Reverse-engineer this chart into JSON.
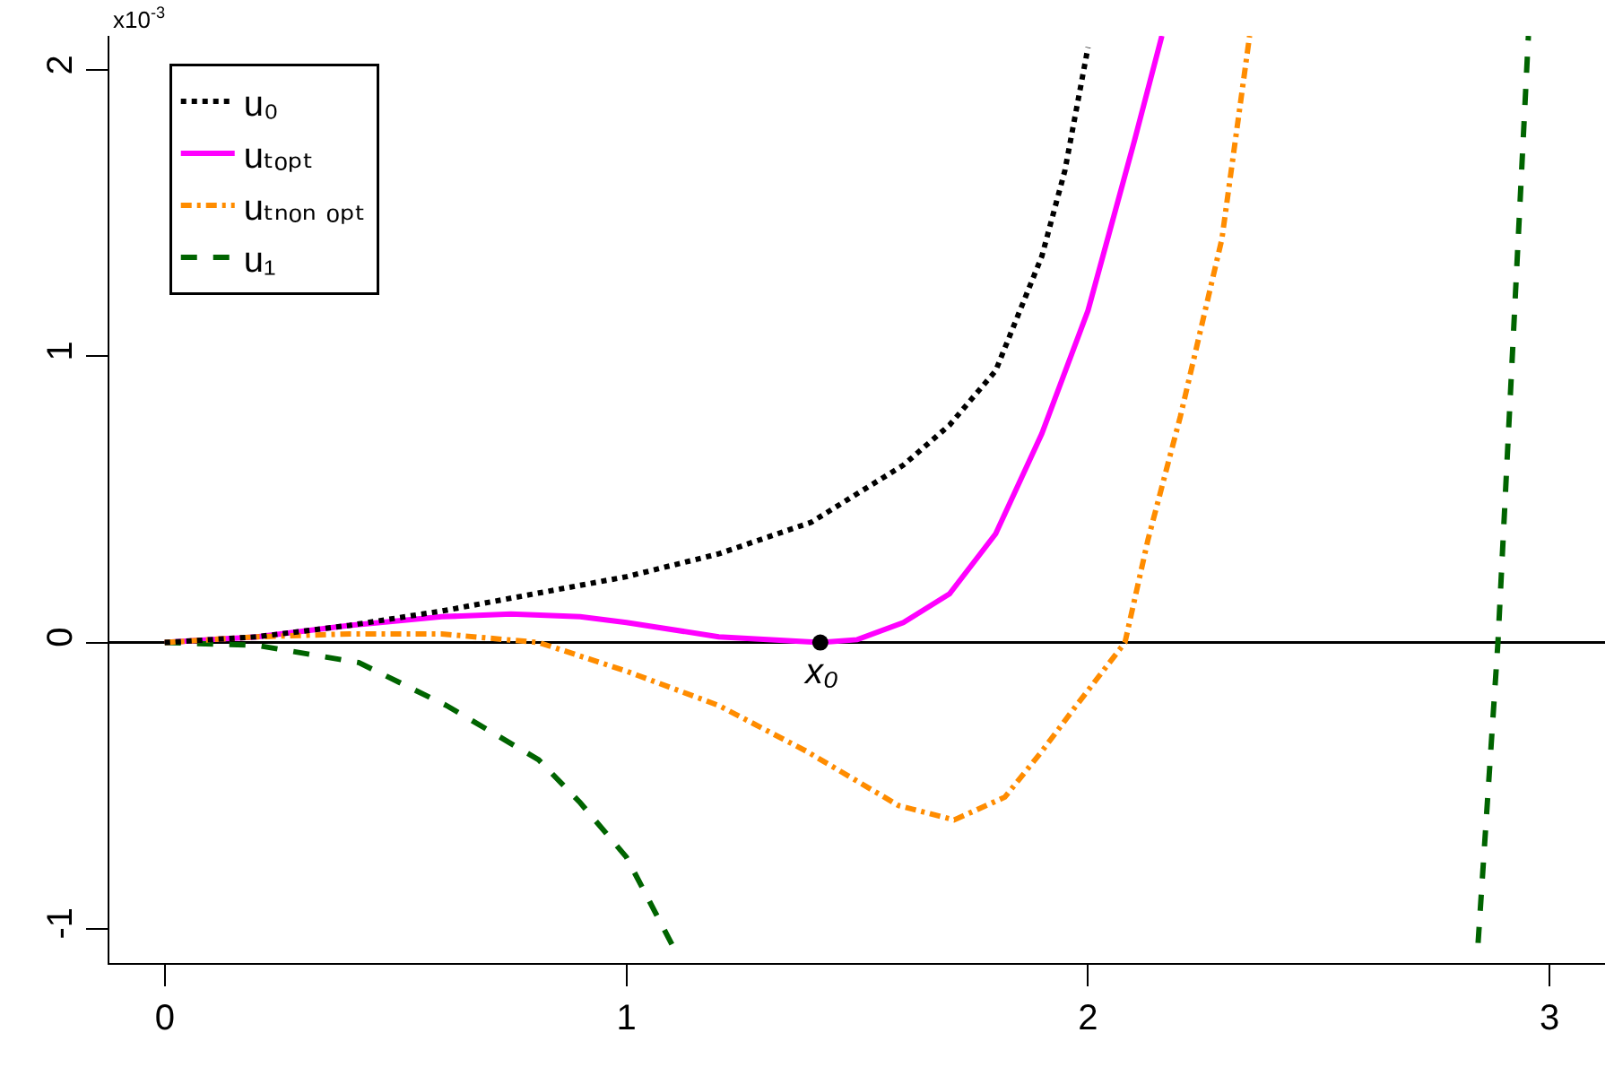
{
  "chart_data": {
    "type": "line",
    "xlim": [
      -0.12,
      3.12
    ],
    "xticks": [
      0,
      1,
      2,
      3
    ],
    "ylim": [
      -1.12,
      2.12
    ],
    "yticks": [
      2,
      1,
      0,
      -1
    ],
    "grid": false,
    "legend": "top left",
    "marker": "none",
    "annotations": [
      "x10$^{-3}$",
      {
        "text": "x₀",
        "x": 1.42,
        "y": 0
      }
    ],
    "ref_lines": [
      {
        "axis": "y",
        "value": 0,
        "color": "#000000",
        "line_style": "solid"
      }
    ],
    "series": [
      {
        "name": "u₀",
        "color": "#000000",
        "line_style": "dotted",
        "x": [
          0,
          0.2,
          0.4,
          0.6,
          0.8,
          1.0,
          1.2,
          1.4,
          1.6,
          1.7,
          1.8,
          1.9,
          1.95,
          2.0
        ],
        "values": [
          0,
          0.02,
          0.06,
          0.11,
          0.17,
          0.23,
          0.31,
          0.42,
          0.62,
          0.76,
          0.95,
          1.35,
          1.65,
          2.08
        ]
      },
      {
        "name": "uₜₒₚₜ",
        "color": "#ff00ff",
        "line_style": "solid",
        "x": [
          0,
          0.2,
          0.4,
          0.6,
          0.75,
          0.9,
          1.0,
          1.2,
          1.42,
          1.5,
          1.6,
          1.7,
          1.8,
          1.9,
          2.0,
          2.1,
          2.16
        ],
        "values": [
          0,
          0.02,
          0.06,
          0.09,
          0.1,
          0.09,
          0.07,
          0.02,
          0,
          0.01,
          0.07,
          0.17,
          0.38,
          0.73,
          1.16,
          1.75,
          2.12
        ]
      },
      {
        "name": "uₜₙₒₙ ₒₚₜ",
        "color": "#ff8c00",
        "line_style": "dashdot",
        "x": [
          0,
          0.2,
          0.4,
          0.6,
          0.81,
          1.0,
          1.2,
          1.39,
          1.59,
          1.71,
          1.82,
          1.9,
          1.97,
          2.08,
          2.13,
          2.2,
          2.29,
          2.35
        ],
        "values": [
          0,
          0.02,
          0.03,
          0.03,
          0,
          -0.1,
          -0.22,
          -0.38,
          -0.57,
          -0.62,
          -0.54,
          -0.38,
          -0.23,
          0,
          0.36,
          0.79,
          1.41,
          2.12
        ]
      },
      {
        "name": "u₁",
        "color": "#006400",
        "line_style": "dashed",
        "x": [
          0,
          0.2,
          0.42,
          0.61,
          0.81,
          0.9,
          1.0,
          1.11,
          2.0,
          2.845,
          2.888,
          2.954
        ],
        "values": [
          0,
          -0.01,
          -0.07,
          -0.22,
          -0.41,
          -0.56,
          -0.75,
          -1.09,
          null,
          -1.05,
          0,
          2.12
        ]
      },
      {
        "type": "scatter",
        "marker": "circle",
        "color": "#000000",
        "x": [
          1.42
        ],
        "values": [
          0
        ]
      }
    ]
  }
}
